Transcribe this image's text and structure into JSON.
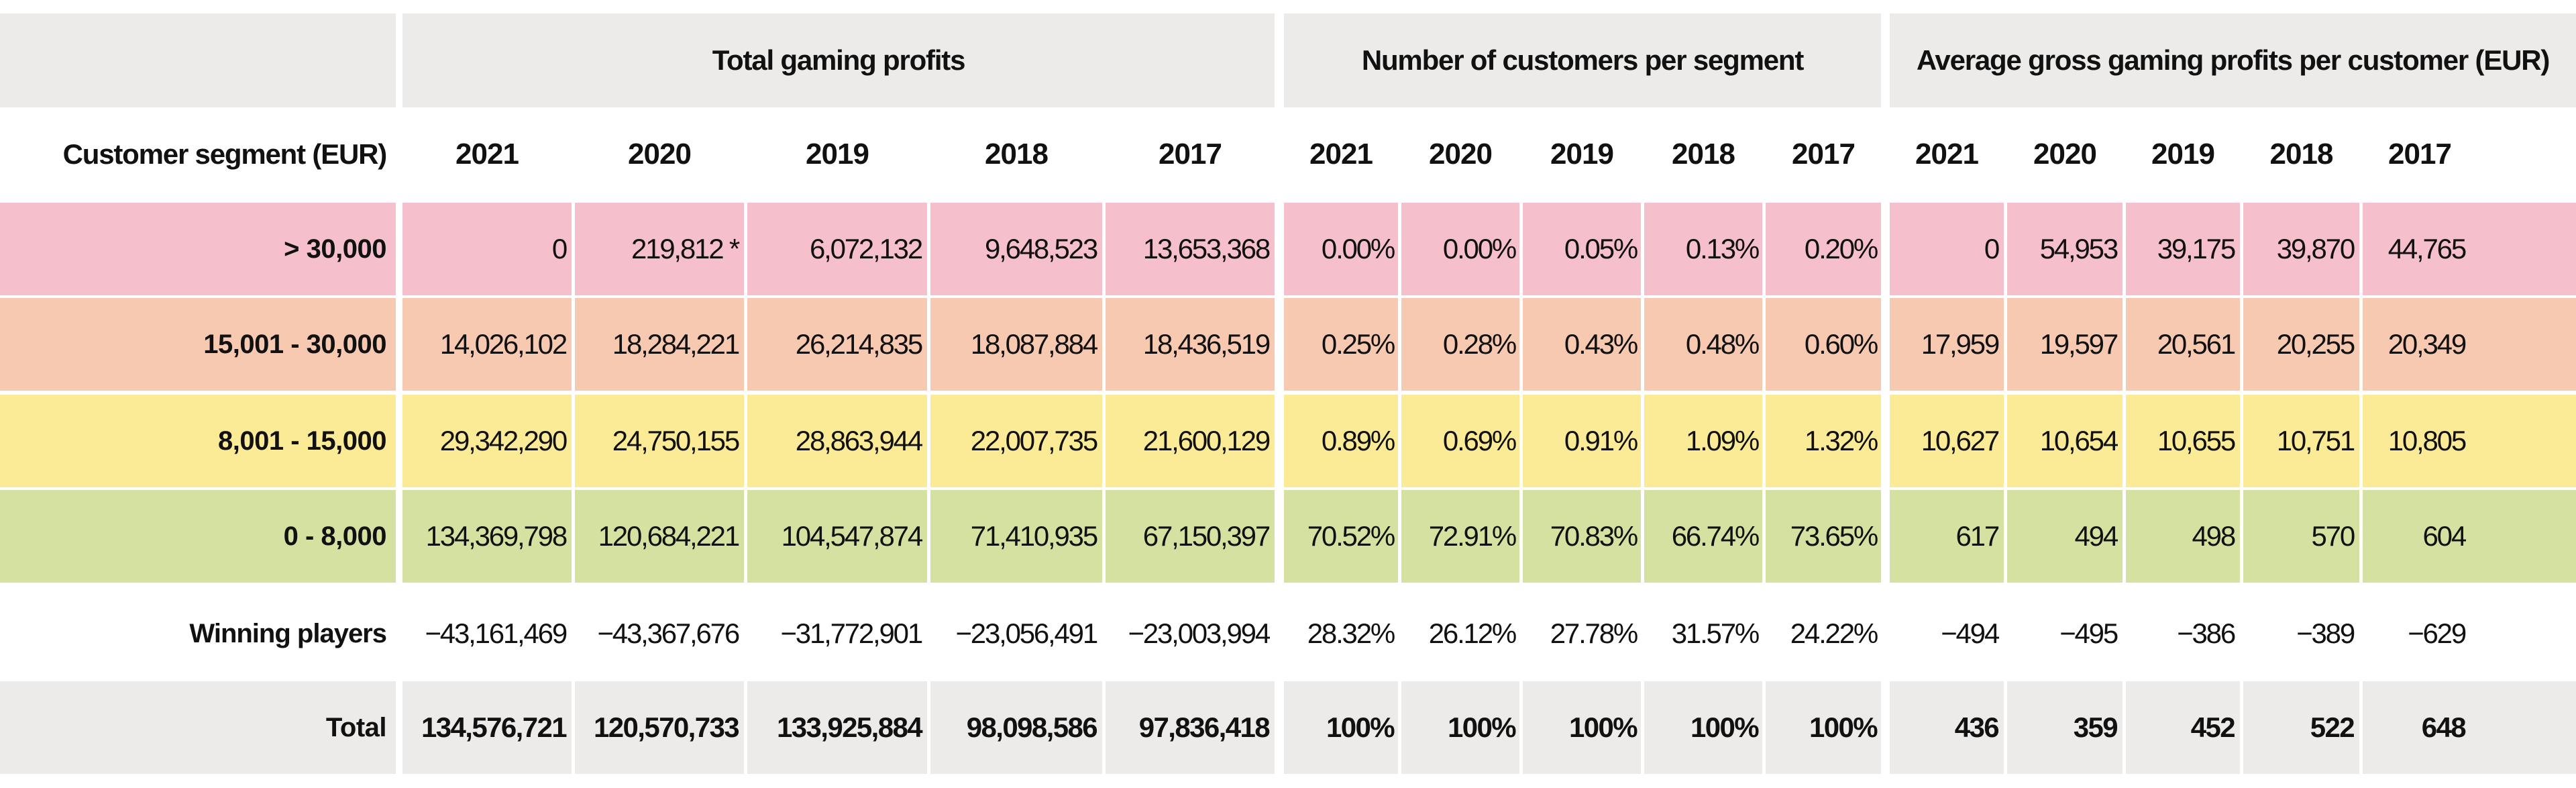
{
  "colors": {
    "header_bg": "#ecebe9",
    "seg_gt30000": "#f5bfcc",
    "seg_15001_30000": "#f7c9b0",
    "seg_8001_15000": "#fbeb96",
    "seg_0_8000": "#d5e1a0",
    "winning_bg": "#ffffff",
    "total_bg": "#ecebe9"
  },
  "groups": [
    {
      "label": "Total gaming profits"
    },
    {
      "label": "Number of customers per segment"
    },
    {
      "label": "Average gross gaming profits per customer (EUR)"
    }
  ],
  "row_header_label": "Customer segment (EUR)",
  "years": [
    "2021",
    "2020",
    "2019",
    "2018",
    "2017"
  ],
  "rows": [
    {
      "label": "> 30,000",
      "color_key": "seg_gt30000",
      "bold": false,
      "profits": [
        "0",
        "219,812 *",
        "6,072,132",
        "9,648,523",
        "13,653,368"
      ],
      "customers": [
        "0.00%",
        "0.00%",
        "0.05%",
        "0.13%",
        "0.20%"
      ],
      "average": [
        "0",
        "54,953",
        "39,175",
        "39,870",
        "44,765"
      ]
    },
    {
      "label": "15,001 - 30,000",
      "color_key": "seg_15001_30000",
      "bold": false,
      "profits": [
        "14,026,102",
        "18,284,221",
        "26,214,835",
        "18,087,884",
        "18,436,519"
      ],
      "customers": [
        "0.25%",
        "0.28%",
        "0.43%",
        "0.48%",
        "0.60%"
      ],
      "average": [
        "17,959",
        "19,597",
        "20,561",
        "20,255",
        "20,349"
      ]
    },
    {
      "label": "8,001 - 15,000",
      "color_key": "seg_8001_15000",
      "bold": false,
      "profits": [
        "29,342,290",
        "24,750,155",
        "28,863,944",
        "22,007,735",
        "21,600,129"
      ],
      "customers": [
        "0.89%",
        "0.69%",
        "0.91%",
        "1.09%",
        "1.32%"
      ],
      "average": [
        "10,627",
        "10,654",
        "10,655",
        "10,751",
        "10,805"
      ]
    },
    {
      "label": "0 - 8,000",
      "color_key": "seg_0_8000",
      "bold": false,
      "profits": [
        "134,369,798",
        "120,684,221",
        "104,547,874",
        "71,410,935",
        "67,150,397"
      ],
      "customers": [
        "70.52%",
        "72.91%",
        "70.83%",
        "66.74%",
        "73.65%"
      ],
      "average": [
        "617",
        "494",
        "498",
        "570",
        "604"
      ]
    },
    {
      "label": "Winning players",
      "color_key": "winning_bg",
      "bold": false,
      "profits": [
        "−43,161,469",
        "−43,367,676",
        "−31,772,901",
        "−23,056,491",
        "−23,003,994"
      ],
      "customers": [
        "28.32%",
        "26.12%",
        "27.78%",
        "31.57%",
        "24.22%"
      ],
      "average": [
        "−494",
        "−495",
        "−386",
        "−389",
        "−629"
      ]
    },
    {
      "label": "Total",
      "color_key": "total_bg",
      "bold": true,
      "profits": [
        "134,576,721",
        "120,570,733",
        "133,925,884",
        "98,098,586",
        "97,836,418"
      ],
      "customers": [
        "100%",
        "100%",
        "100%",
        "100%",
        "100%"
      ],
      "average": [
        "436",
        "359",
        "452",
        "522",
        "648"
      ]
    }
  ]
}
